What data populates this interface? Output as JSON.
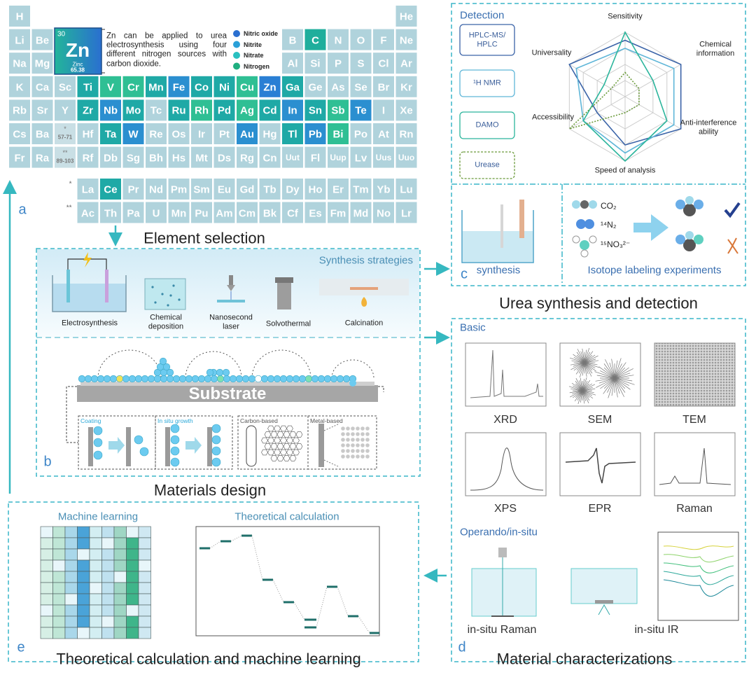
{
  "periodic_table": {
    "rows": [
      [
        "H",
        null,
        null,
        null,
        null,
        null,
        null,
        null,
        null,
        null,
        null,
        null,
        null,
        null,
        null,
        null,
        null,
        "He"
      ],
      [
        "Li",
        "Be",
        null,
        null,
        null,
        null,
        null,
        null,
        null,
        null,
        null,
        null,
        "B",
        {
          "symbol": "C",
          "color": "#1fae9c"
        },
        "N",
        "O",
        "F",
        "Ne"
      ],
      [
        "Na",
        "Mg",
        null,
        null,
        null,
        null,
        null,
        null,
        null,
        null,
        null,
        null,
        "Al",
        "Si",
        "P",
        "S",
        "Cl",
        "Ar"
      ],
      [
        "K",
        "Ca",
        "Sc",
        {
          "symbol": "Ti",
          "color": "#1fa9a6"
        },
        {
          "symbol": "V",
          "color": "#2fbf94"
        },
        {
          "symbol": "Cr",
          "color": "#2fbf94"
        },
        {
          "symbol": "Mn",
          "color": "#1fa9a6"
        },
        {
          "symbol": "Fe",
          "color": "#2b8fd0"
        },
        {
          "symbol": "Co",
          "color": "#1fa9a6"
        },
        {
          "symbol": "Ni",
          "color": "#1fa9a6"
        },
        {
          "symbol": "Cu",
          "color": "#2fbf94"
        },
        {
          "symbol": "Zn",
          "color": "#2a7fd4"
        },
        {
          "symbol": "Ga",
          "color": "#1fa9a6"
        },
        "Ge",
        "As",
        "Se",
        "Br",
        "Kr"
      ],
      [
        "Rb",
        "Sr",
        "Y",
        {
          "symbol": "Zr",
          "color": "#1fa9a6"
        },
        {
          "symbol": "Nb",
          "color": "#2b8fd0"
        },
        {
          "symbol": "Mo",
          "color": "#1fa9a6"
        },
        "Tc",
        {
          "symbol": "Ru",
          "color": "#1fa9a6"
        },
        {
          "symbol": "Rh",
          "color": "#2fbf94"
        },
        {
          "symbol": "Pd",
          "color": "#1fa9a6"
        },
        {
          "symbol": "Ag",
          "color": "#2fbf94"
        },
        {
          "symbol": "Cd",
          "color": "#1fa9a6"
        },
        {
          "symbol": "In",
          "color": "#2b8fd0"
        },
        {
          "symbol": "Sn",
          "color": "#1fa9a6"
        },
        {
          "symbol": "Sb",
          "color": "#2fbf94"
        },
        {
          "symbol": "Te",
          "color": "#2b8fd0"
        },
        "I",
        "Xe"
      ],
      [
        "Cs",
        "Ba",
        {
          "label": "57-71",
          "marker": "*"
        },
        "Hf",
        {
          "symbol": "Ta",
          "color": "#1fa9a6"
        },
        {
          "symbol": "W",
          "color": "#2b8fd0"
        },
        "Re",
        "Os",
        "Ir",
        "Pt",
        {
          "symbol": "Au",
          "color": "#2b8fd0"
        },
        "Hg",
        {
          "symbol": "Tl",
          "color": "#1fa9a6"
        },
        {
          "symbol": "Pb",
          "color": "#2b8fd0"
        },
        {
          "symbol": "Bi",
          "color": "#2fbf94"
        },
        "Po",
        "At",
        "Rn"
      ],
      [
        "Fr",
        "Ra",
        {
          "label": "89-103",
          "marker": "**"
        },
        "Rf",
        "Db",
        "Sg",
        "Bh",
        "Hs",
        "Mt",
        "Ds",
        "Rg",
        "Cn",
        "Uut",
        "Fl",
        "Uup",
        "Lv",
        "Uus",
        "Uuo"
      ]
    ],
    "f_block": [
      {
        "marker": "*",
        "elements": [
          "La",
          {
            "symbol": "Ce",
            "color": "#1fa9a6"
          },
          "Pr",
          "Nd",
          "Pm",
          "Sm",
          "Eu",
          "Gd",
          "Tb",
          "Dy",
          "Ho",
          "Er",
          "Tm",
          "Yb",
          "Lu"
        ]
      },
      {
        "marker": "**",
        "elements": [
          "Ac",
          "Th",
          "Pa",
          "U",
          "Mn",
          "Pu",
          "Am",
          "Cm",
          "Bk",
          "Cf",
          "Es",
          "Fm",
          "Md",
          "No",
          "Lr"
        ]
      }
    ],
    "zn_card": {
      "number": "30",
      "symbol": "Zn",
      "name": "Zinc",
      "mass": "65.38"
    },
    "zn_note": "Zn can be applied to urea electrosynthesis using four different nitrogen sources with carbon dioxide.",
    "legend": [
      {
        "name": "Nitric oxide",
        "color": "#2a6fd0"
      },
      {
        "name": "Nitrite",
        "color": "#2aa0d8"
      },
      {
        "name": "Nitrate",
        "color": "#2ac0c0"
      },
      {
        "name": "Nitrogen",
        "color": "#1faf80"
      }
    ],
    "caption": "Element selection",
    "label": "a"
  },
  "materials_design": {
    "strategies_title": "Synthesis strategies",
    "methods": [
      "Electrosynthesis",
      "Chemical deposition",
      "Nanosecond laser",
      "Solvothermal",
      "Calcination"
    ],
    "substrate": "Substrate",
    "sub_panels": [
      "Coating",
      "In situ growth",
      "Carbon-based",
      "Metal-based"
    ],
    "label": "b",
    "caption": "Materials design"
  },
  "urea": {
    "detection_title": "Detection",
    "radar": {
      "axes": [
        "Sensitivity",
        "Chemical information",
        "Anti-interference ability",
        "Speed of analysis",
        "Accessibility",
        "Universality"
      ],
      "rlim": [
        0,
        4
      ],
      "rticks": [
        1,
        2,
        3,
        4
      ],
      "series": [
        {
          "name": "HPLC-MS/ HPLC",
          "color": "#3b64a8",
          "values": [
            3.5,
            4,
            4,
            3,
            2,
            4
          ]
        },
        {
          "name": "¹H NMR",
          "color": "#5fb6d8",
          "values": [
            3,
            3.5,
            3.5,
            3.5,
            3,
            3.5
          ]
        },
        {
          "name": "DAMO",
          "color": "#2bb59c",
          "values": [
            4,
            2,
            3,
            4,
            3,
            1.5
          ]
        },
        {
          "name": "Urease",
          "color": "#6a9a3a",
          "values": [
            1.5,
            1,
            1,
            1,
            4,
            1
          ]
        }
      ]
    },
    "synthesis": "synthesis",
    "isotopes": [
      "CO₂",
      "¹⁴N₂",
      "¹⁵NO₃²⁻"
    ],
    "isotope_title": "Isotope labeling experiments",
    "label": "c",
    "caption": "Urea synthesis and detection"
  },
  "characterization": {
    "basic_title": "Basic",
    "basic": [
      "XRD",
      "SEM",
      "TEM",
      "XPS",
      "EPR",
      "Raman"
    ],
    "operando_title": "Operando/in-situ",
    "operando": [
      "in-situ Raman",
      "in-situ IR"
    ],
    "label": "d",
    "caption": "Material characterizations"
  },
  "theory": {
    "ml_title": "Machine learning",
    "calc_title": "Theoretical calculation",
    "label": "e",
    "caption": "Theoretical calculation and machine learning"
  }
}
